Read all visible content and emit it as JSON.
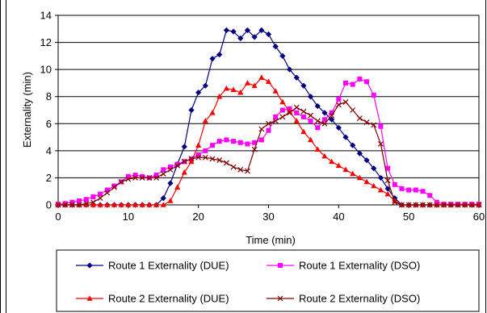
{
  "chart_data": {
    "type": "line",
    "xlabel": "Time (min)",
    "ylabel": "Externality (min)",
    "xlim": [
      0,
      60
    ],
    "ylim": [
      0,
      14
    ],
    "xticks": [
      0,
      10,
      20,
      30,
      40,
      50,
      60
    ],
    "yticks": [
      0,
      2,
      4,
      6,
      8,
      10,
      12,
      14
    ],
    "grid": "horizontal",
    "legend_position": "bottom",
    "series": [
      {
        "name": "Route 1 Externality (DUE)",
        "color": "#000080",
        "marker": "diamond",
        "x": [
          0,
          1,
          2,
          3,
          4,
          5,
          6,
          7,
          8,
          9,
          10,
          11,
          12,
          13,
          14,
          15,
          16,
          17,
          18,
          19,
          20,
          21,
          22,
          23,
          24,
          25,
          26,
          27,
          28,
          29,
          30,
          31,
          32,
          33,
          34,
          35,
          36,
          37,
          38,
          39,
          40,
          41,
          42,
          43,
          44,
          45,
          46,
          47,
          48,
          49,
          50,
          51,
          52,
          53,
          54,
          55,
          56,
          57,
          58,
          59,
          60
        ],
        "y": [
          0,
          0,
          0,
          0,
          0,
          0,
          0,
          0,
          0,
          0,
          0,
          0,
          0,
          0,
          0,
          0.5,
          1.6,
          3,
          4.3,
          7,
          8.3,
          8.8,
          10.8,
          11.1,
          12.9,
          12.8,
          12.3,
          12.9,
          12.4,
          12.9,
          12.6,
          11.7,
          11.0,
          10.0,
          9.4,
          8.8,
          8.0,
          7.3,
          6.8,
          6.3,
          5.7,
          5.0,
          4.4,
          3.8,
          3.3,
          2.7,
          2.0,
          1.2,
          0.5,
          0,
          0,
          0,
          0,
          0,
          0,
          0,
          0,
          0,
          0,
          0,
          0
        ]
      },
      {
        "name": "Route 1 Externality (DSO)",
        "color": "#FF00FF",
        "marker": "square",
        "x": [
          0,
          1,
          2,
          3,
          4,
          5,
          6,
          7,
          8,
          9,
          10,
          11,
          12,
          13,
          14,
          15,
          16,
          17,
          18,
          19,
          20,
          21,
          22,
          23,
          24,
          25,
          26,
          27,
          28,
          29,
          30,
          31,
          32,
          33,
          34,
          35,
          36,
          37,
          38,
          39,
          40,
          41,
          42,
          43,
          44,
          45,
          46,
          47,
          48,
          49,
          50,
          51,
          52,
          53,
          54,
          55,
          56,
          57,
          58,
          59,
          60
        ],
        "y": [
          0.05,
          0.1,
          0.2,
          0.3,
          0.4,
          0.6,
          0.8,
          1.1,
          1.4,
          1.7,
          2.1,
          2.2,
          2.1,
          2.0,
          2.2,
          2.6,
          2.8,
          3.0,
          3.2,
          3.4,
          3.7,
          4.0,
          4.4,
          4.7,
          4.8,
          4.7,
          4.6,
          4.5,
          4.6,
          4.8,
          5.5,
          6.5,
          7.0,
          7.1,
          6.8,
          6.5,
          6.2,
          5.7,
          6.3,
          6.8,
          7.8,
          9.0,
          8.9,
          9.3,
          9.1,
          8.1,
          5.8,
          2.7,
          1.5,
          1.2,
          1.1,
          1.1,
          1.0,
          0.7,
          0.2,
          0.05,
          0.05,
          0.05,
          0.05,
          0.05,
          0.05
        ]
      },
      {
        "name": "Route 2 Externality (DUE)",
        "color": "#FF0000",
        "marker": "triangle",
        "x": [
          0,
          1,
          2,
          3,
          4,
          5,
          6,
          7,
          8,
          9,
          10,
          11,
          12,
          13,
          14,
          15,
          16,
          17,
          18,
          19,
          20,
          21,
          22,
          23,
          24,
          25,
          26,
          27,
          28,
          29,
          30,
          31,
          32,
          33,
          34,
          35,
          36,
          37,
          38,
          39,
          40,
          41,
          42,
          43,
          44,
          45,
          46,
          47,
          48,
          49,
          50,
          51,
          52,
          53,
          54,
          55,
          56,
          57,
          58,
          59,
          60
        ],
        "y": [
          0,
          0,
          0,
          0,
          0,
          0,
          0,
          0,
          0,
          0,
          0,
          0,
          0,
          0,
          0,
          0,
          0.3,
          1.3,
          2.4,
          3.2,
          4.4,
          6.2,
          6.8,
          8.0,
          8.6,
          8.5,
          8.3,
          9.0,
          8.8,
          9.4,
          9.1,
          8.4,
          7.6,
          6.9,
          6.2,
          5.4,
          4.8,
          4.1,
          3.6,
          3.2,
          2.9,
          2.6,
          2.3,
          2.0,
          1.7,
          1.4,
          1.1,
          0.8,
          0.3,
          0,
          0,
          0,
          0,
          0,
          0,
          0,
          0,
          0,
          0,
          0,
          0
        ]
      },
      {
        "name": "Route 2 Externality (DSO)",
        "color": "#800000",
        "marker": "x",
        "x": [
          0,
          1,
          2,
          3,
          4,
          5,
          6,
          7,
          8,
          9,
          10,
          11,
          12,
          13,
          14,
          15,
          16,
          17,
          18,
          19,
          20,
          21,
          22,
          23,
          24,
          25,
          26,
          27,
          28,
          29,
          30,
          31,
          32,
          33,
          34,
          35,
          36,
          37,
          38,
          39,
          40,
          41,
          42,
          43,
          44,
          45,
          46,
          47,
          48,
          49,
          50,
          51,
          52,
          53,
          54,
          55,
          56,
          57,
          58,
          59,
          60
        ],
        "y": [
          0,
          0,
          0,
          0,
          0.1,
          0.2,
          0.5,
          0.9,
          1.3,
          1.7,
          1.9,
          2.0,
          2.0,
          2.0,
          2.0,
          2.3,
          2.6,
          2.9,
          3.2,
          3.4,
          3.5,
          3.5,
          3.4,
          3.3,
          3.1,
          2.8,
          2.6,
          2.5,
          4.1,
          5.6,
          6.0,
          6.2,
          6.5,
          6.8,
          7.2,
          6.9,
          6.6,
          6.2,
          6.0,
          6.6,
          7.4,
          7.6,
          7.0,
          6.4,
          6.1,
          5.9,
          4.5,
          1.8,
          0.2,
          0,
          0,
          0,
          0,
          0,
          0,
          0,
          0,
          0,
          0,
          0,
          0
        ]
      }
    ]
  }
}
